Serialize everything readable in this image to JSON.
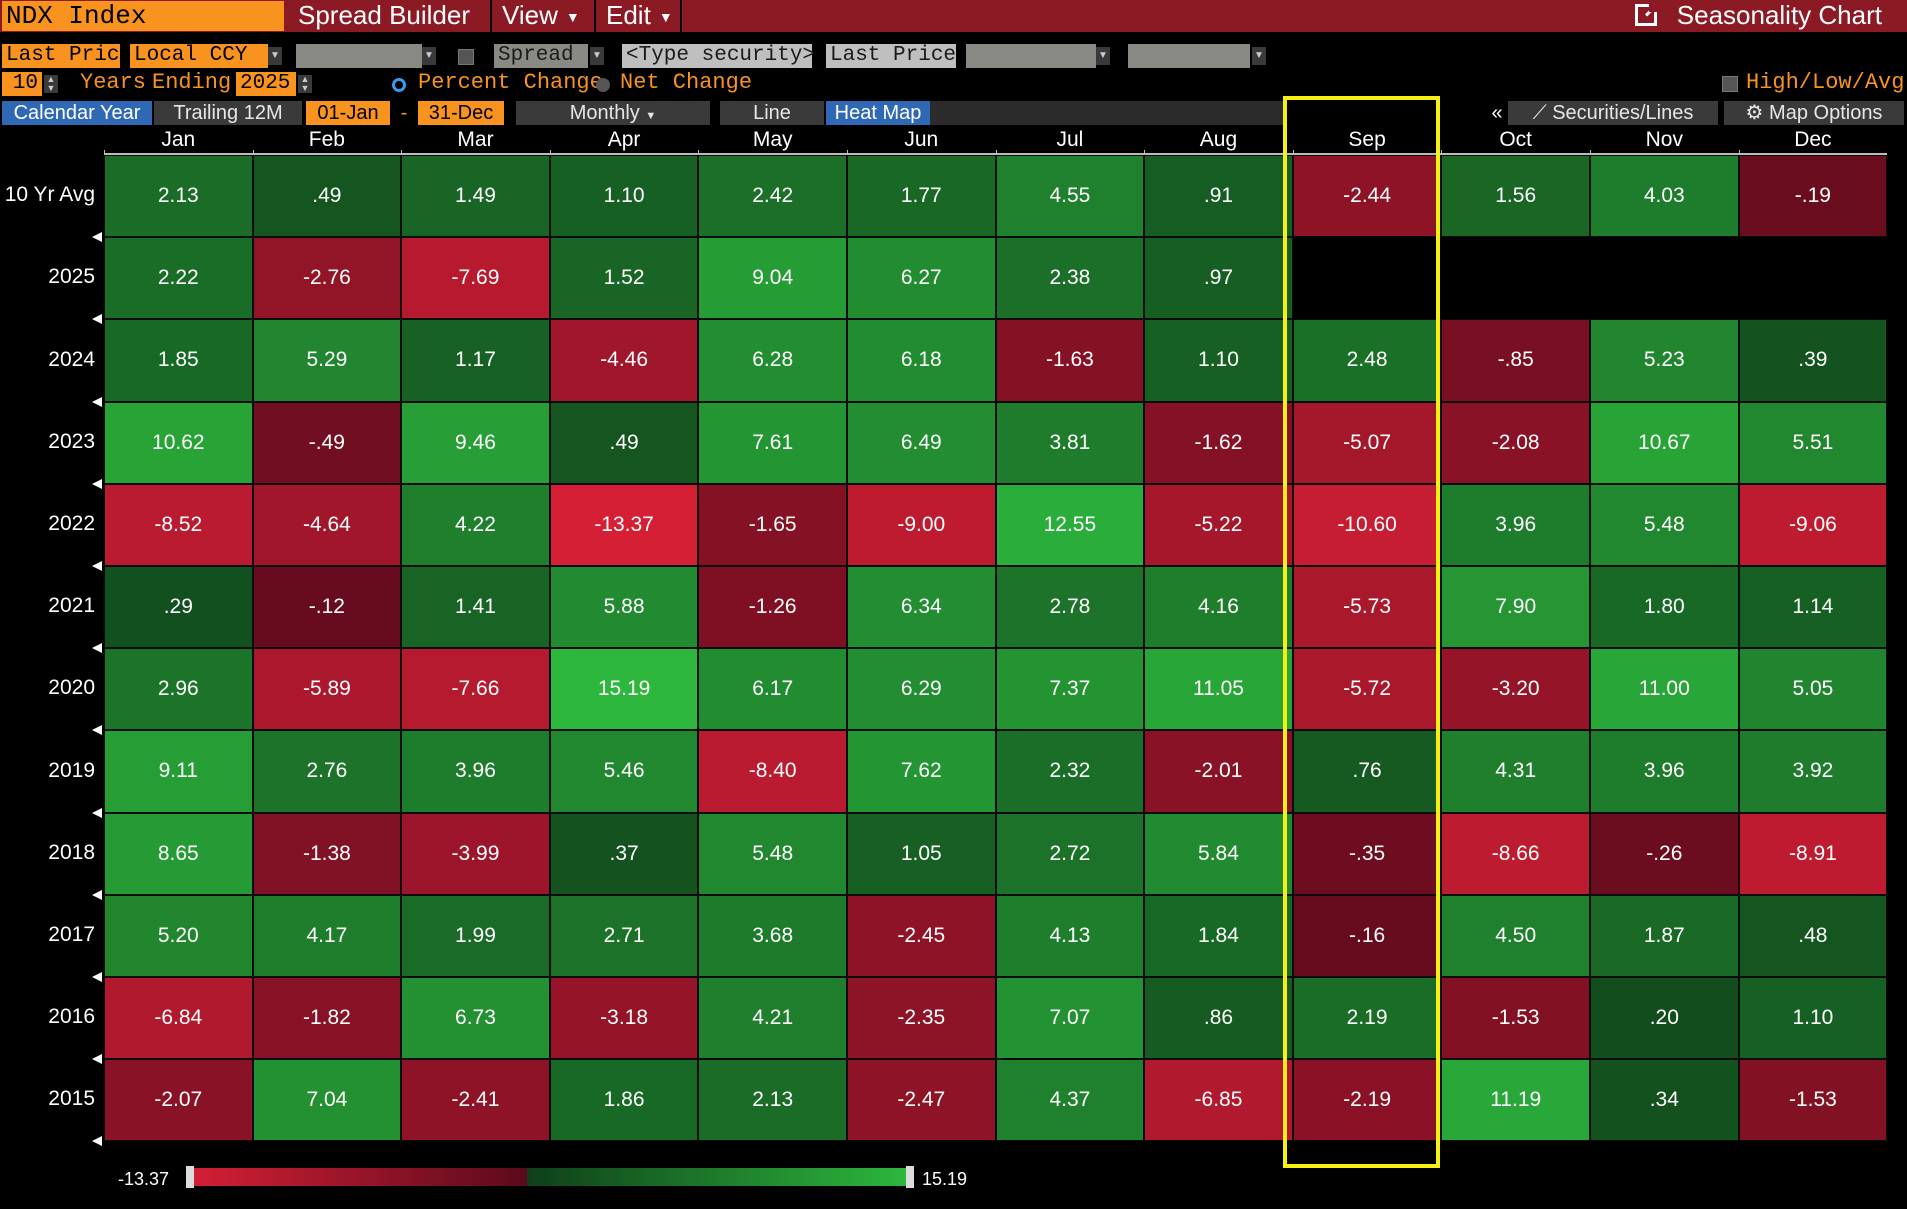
{
  "toolbar": {
    "security": "NDX Index",
    "menus": [
      "Spread Builder",
      "View",
      "Edit"
    ],
    "chart_title": "Seasonality Chart"
  },
  "controls": {
    "field1": "Last Price",
    "currency": "Local CCY",
    "spread_label": "Spread",
    "type_security": "<Type security>",
    "field2": "Last Price",
    "years_value": "10",
    "years_label": "Years",
    "ending_label": "Ending",
    "ending_value": "2025",
    "percent_change": "Percent Change",
    "net_change": "Net Change",
    "high_low_avg": "High/Low/Avg",
    "calendar_year": "Calendar Year",
    "trailing": "Trailing 12M",
    "start_date": "01-Jan",
    "dash": "-",
    "end_date": "31-Dec",
    "period": "Monthly",
    "line": "Line",
    "heat_map": "Heat Map",
    "collapse": "«",
    "securities_lines": "Securities/Lines",
    "map_options": "Map Options"
  },
  "colors": {
    "neg_max": "#d41f35",
    "neg_min": "#5a0a1c",
    "pos_min": "#0f3f1a",
    "pos_max": "#2db83d",
    "highlight": "#f5ef14",
    "accent": "#f7931e"
  },
  "chart_data": {
    "type": "heatmap",
    "columns": [
      "Jan",
      "Feb",
      "Mar",
      "Apr",
      "May",
      "Jun",
      "Jul",
      "Aug",
      "Sep",
      "Oct",
      "Nov",
      "Dec"
    ],
    "rows": [
      {
        "label": "10 Yr Avg",
        "values": [
          "2.13",
          ".49",
          "1.49",
          "1.10",
          "2.42",
          "1.77",
          "4.55",
          ".91",
          "-2.44",
          "1.56",
          "4.03",
          "-.19"
        ]
      },
      {
        "label": "2025",
        "values": [
          "2.22",
          "-2.76",
          "-7.69",
          "1.52",
          "9.04",
          "6.27",
          "2.38",
          ".97",
          null,
          null,
          null,
          null
        ]
      },
      {
        "label": "2024",
        "values": [
          "1.85",
          "5.29",
          "1.17",
          "-4.46",
          "6.28",
          "6.18",
          "-1.63",
          "1.10",
          "2.48",
          "-.85",
          "5.23",
          ".39"
        ]
      },
      {
        "label": "2023",
        "values": [
          "10.62",
          "-.49",
          "9.46",
          ".49",
          "7.61",
          "6.49",
          "3.81",
          "-1.62",
          "-5.07",
          "-2.08",
          "10.67",
          "5.51"
        ]
      },
      {
        "label": "2022",
        "values": [
          "-8.52",
          "-4.64",
          "4.22",
          "-13.37",
          "-1.65",
          "-9.00",
          "12.55",
          "-5.22",
          "-10.60",
          "3.96",
          "5.48",
          "-9.06"
        ]
      },
      {
        "label": "2021",
        "values": [
          ".29",
          "-.12",
          "1.41",
          "5.88",
          "-1.26",
          "6.34",
          "2.78",
          "4.16",
          "-5.73",
          "7.90",
          "1.80",
          "1.14"
        ]
      },
      {
        "label": "2020",
        "values": [
          "2.96",
          "-5.89",
          "-7.66",
          "15.19",
          "6.17",
          "6.29",
          "7.37",
          "11.05",
          "-5.72",
          "-3.20",
          "11.00",
          "5.05"
        ]
      },
      {
        "label": "2019",
        "values": [
          "9.11",
          "2.76",
          "3.96",
          "5.46",
          "-8.40",
          "7.62",
          "2.32",
          "-2.01",
          ".76",
          "4.31",
          "3.96",
          "3.92"
        ]
      },
      {
        "label": "2018",
        "values": [
          "8.65",
          "-1.38",
          "-3.99",
          ".37",
          "5.48",
          "1.05",
          "2.72",
          "5.84",
          "-.35",
          "-8.66",
          "-.26",
          "-8.91"
        ]
      },
      {
        "label": "2017",
        "values": [
          "5.20",
          "4.17",
          "1.99",
          "2.71",
          "3.68",
          "-2.45",
          "4.13",
          "1.84",
          "-.16",
          "4.50",
          "1.87",
          ".48"
        ]
      },
      {
        "label": "2016",
        "values": [
          "-6.84",
          "-1.82",
          "6.73",
          "-3.18",
          "4.21",
          "-2.35",
          "7.07",
          ".86",
          "2.19",
          "-1.53",
          ".20",
          "1.10"
        ]
      },
      {
        "label": "2015",
        "values": [
          "-2.07",
          "7.04",
          "-2.41",
          "1.86",
          "2.13",
          "-2.47",
          "4.37",
          "-6.85",
          "-2.19",
          "11.19",
          ".34",
          "-1.53"
        ]
      }
    ],
    "legend": {
      "min": "-13.37",
      "max": "15.19",
      "min_value": -13.37,
      "max_value": 15.19
    },
    "highlight_column": "Sep"
  }
}
